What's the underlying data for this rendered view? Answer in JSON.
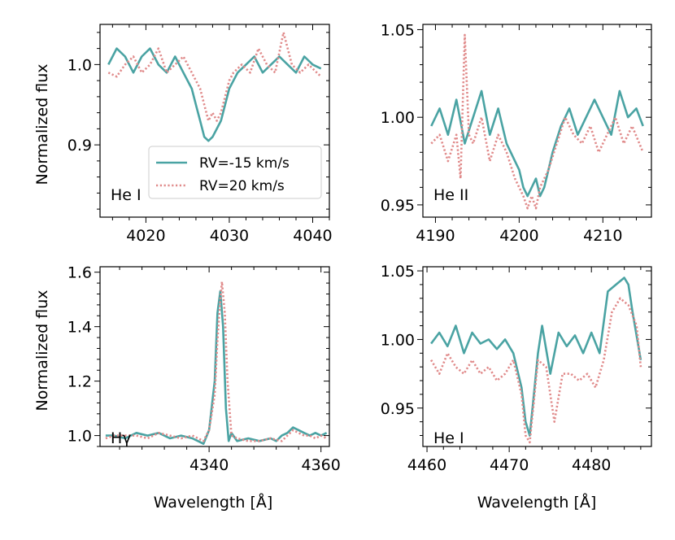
{
  "figure": {
    "y_axis_label": "Normalized flux",
    "x_axis_label": "Wavelength [Å]"
  },
  "legend": {
    "entries": [
      {
        "label": "RV=-15 km/s",
        "color": "#4aa3a3",
        "style": "solid"
      },
      {
        "label": "RV=20 km/s",
        "color": "#e08a8a",
        "style": "dotted"
      }
    ]
  },
  "chart_data": [
    {
      "type": "line",
      "panel_label": "He I",
      "xlim": [
        4014.5,
        4042
      ],
      "ylim": [
        0.81,
        1.05
      ],
      "x_ticks": [
        4020,
        4030,
        4040
      ],
      "y_ticks": [
        0.9,
        1.0
      ],
      "y_tick_labels": [
        "0.9",
        "1.0"
      ],
      "series": [
        {
          "name": "RV=-15 km/s",
          "x": [
            4015.5,
            4016.5,
            4017.5,
            4018.5,
            4019.5,
            4020.5,
            4021.5,
            4022.5,
            4023.5,
            4024.5,
            4025.5,
            4026.0,
            4026.5,
            4027.0,
            4027.5,
            4028.0,
            4028.5,
            4029.0,
            4029.5,
            4030.0,
            4031.0,
            4032.0,
            4033.0,
            4034.0,
            4035.0,
            4036.0,
            4037.0,
            4038.0,
            4039.0,
            4040.0,
            4041.0
          ],
          "y": [
            1.0,
            1.02,
            1.01,
            0.99,
            1.01,
            1.02,
            1.0,
            0.99,
            1.01,
            0.99,
            0.97,
            0.95,
            0.93,
            0.91,
            0.905,
            0.91,
            0.92,
            0.93,
            0.95,
            0.97,
            0.99,
            1.0,
            1.01,
            0.99,
            1.0,
            1.01,
            1.0,
            0.99,
            1.01,
            1.0,
            0.995
          ]
        },
        {
          "name": "RV=20 km/s",
          "x": [
            4015.5,
            4016.5,
            4017.5,
            4018.5,
            4019.5,
            4020.5,
            4021.5,
            4022.5,
            4023.5,
            4024.5,
            4025.5,
            4026.5,
            4027.0,
            4027.5,
            4028.0,
            4028.5,
            4029.0,
            4029.5,
            4030.0,
            4030.5,
            4031.5,
            4032.5,
            4033.5,
            4034.5,
            4035.5,
            4036.5,
            4037.5,
            4038.5,
            4039.5,
            4040.5,
            4041.0
          ],
          "y": [
            0.99,
            0.985,
            1.0,
            1.01,
            0.99,
            1.0,
            1.02,
            0.99,
            1.0,
            1.01,
            0.99,
            0.97,
            0.95,
            0.93,
            0.94,
            0.93,
            0.94,
            0.96,
            0.98,
            0.99,
            1.0,
            0.99,
            1.02,
            1.0,
            0.99,
            1.04,
            1.0,
            0.99,
            1.0,
            0.99,
            0.985
          ]
        }
      ]
    },
    {
      "type": "line",
      "panel_label": "He II",
      "xlim": [
        4188.5,
        4215.8
      ],
      "ylim": [
        0.943,
        1.053
      ],
      "x_ticks": [
        4190,
        4200,
        4210
      ],
      "y_ticks": [
        0.95,
        1.0,
        1.05
      ],
      "y_tick_labels": [
        "0.95",
        "1.00",
        "1.05"
      ],
      "series": [
        {
          "name": "RV=-15 km/s",
          "x": [
            4189.5,
            4190.5,
            4191.5,
            4192.5,
            4193.5,
            4194.5,
            4195.5,
            4196.5,
            4197.5,
            4198.5,
            4199.5,
            4200.0,
            4200.5,
            4201.0,
            4201.5,
            4202.0,
            4202.5,
            4203.0,
            4203.5,
            4204.0,
            4205.0,
            4206.0,
            4207.0,
            4208.0,
            4209.0,
            4210.0,
            4211.0,
            4212.0,
            4213.0,
            4214.0,
            4214.8
          ],
          "y": [
            0.995,
            1.005,
            0.99,
            1.01,
            0.985,
            1.0,
            1.015,
            0.99,
            1.005,
            0.985,
            0.975,
            0.97,
            0.96,
            0.955,
            0.96,
            0.965,
            0.955,
            0.96,
            0.97,
            0.98,
            0.995,
            1.005,
            0.99,
            1.0,
            1.01,
            1.0,
            0.99,
            1.015,
            1.0,
            1.005,
            0.995
          ]
        },
        {
          "name": "RV=20 km/s",
          "x": [
            4189.5,
            4190.5,
            4191.5,
            4192.5,
            4193.0,
            4193.5,
            4194.0,
            4194.5,
            4195.5,
            4196.5,
            4197.5,
            4198.5,
            4199.5,
            4200.5,
            4201.0,
            4201.5,
            4202.0,
            4202.5,
            4203.5,
            4204.5,
            4205.5,
            4206.5,
            4207.5,
            4208.5,
            4209.5,
            4210.5,
            4211.5,
            4212.5,
            4213.5,
            4214.8
          ],
          "y": [
            0.985,
            0.99,
            0.975,
            0.99,
            0.965,
            1.047,
            0.99,
            0.985,
            1.0,
            0.975,
            0.99,
            0.98,
            0.965,
            0.955,
            0.948,
            0.955,
            0.948,
            0.96,
            0.97,
            0.985,
            1.0,
            0.99,
            0.985,
            0.995,
            0.98,
            0.99,
            1.0,
            0.985,
            0.995,
            0.98
          ]
        }
      ]
    },
    {
      "type": "line",
      "panel_label": "Hγ",
      "xlim": [
        4320.5,
        4361.5
      ],
      "ylim": [
        0.96,
        1.62
      ],
      "x_ticks": [
        4340,
        4360
      ],
      "y_ticks": [
        1.0,
        1.2,
        1.4,
        1.6
      ],
      "y_tick_labels": [
        "1.0",
        "1.2",
        "1.4",
        "1.6"
      ],
      "series": [
        {
          "name": "RV=-15 km/s",
          "x": [
            4321.5,
            4323,
            4325,
            4327,
            4329,
            4331,
            4333,
            4335,
            4337,
            4338,
            4339,
            4340,
            4341,
            4341.5,
            4342,
            4342.5,
            4343,
            4343.5,
            4344,
            4345,
            4347,
            4349,
            4351,
            4352,
            4353,
            4354,
            4355,
            4356,
            4357,
            4358,
            4359,
            4360,
            4361
          ],
          "y": [
            1.0,
            1.0,
            0.99,
            1.01,
            1.0,
            1.01,
            0.99,
            1.0,
            0.99,
            0.98,
            0.97,
            1.02,
            1.2,
            1.45,
            1.53,
            1.4,
            1.1,
            0.98,
            1.01,
            0.98,
            0.99,
            0.98,
            0.99,
            0.98,
            1.0,
            1.01,
            1.03,
            1.02,
            1.01,
            1.0,
            1.01,
            1.0,
            1.01
          ]
        },
        {
          "name": "RV=20 km/s",
          "x": [
            4321.5,
            4323,
            4325,
            4327,
            4329,
            4331,
            4333,
            4335,
            4337,
            4339,
            4340,
            4341,
            4341.5,
            4342,
            4342.3,
            4342.8,
            4343.3,
            4344,
            4345,
            4347,
            4349,
            4351,
            4353,
            4355,
            4356,
            4357,
            4358,
            4359,
            4360,
            4361
          ],
          "y": [
            0.99,
            1.0,
            1.0,
            1.0,
            0.99,
            1.01,
            1.0,
            0.99,
            1.0,
            0.98,
            1.02,
            1.15,
            1.35,
            1.5,
            1.565,
            1.45,
            1.2,
            1.0,
            0.99,
            0.98,
            0.98,
            0.99,
            0.98,
            1.02,
            1.01,
            1.0,
            1.0,
            0.99,
            1.0,
            0.99
          ]
        }
      ]
    },
    {
      "type": "line",
      "panel_label": "He I",
      "xlim": [
        4459.5,
        4487.3
      ],
      "ylim": [
        0.922,
        1.053
      ],
      "x_ticks": [
        4460,
        4470,
        4480
      ],
      "y_ticks": [
        0.95,
        1.0,
        1.05
      ],
      "y_tick_labels": [
        "0.95",
        "1.00",
        "1.05"
      ],
      "series": [
        {
          "name": "RV=-15 km/s",
          "x": [
            4460.5,
            4461.5,
            4462.5,
            4463.5,
            4464.5,
            4465.5,
            4466.5,
            4467.5,
            4468.5,
            4469.5,
            4470.5,
            4471.5,
            4472.0,
            4472.5,
            4473.0,
            4473.5,
            4474.0,
            4475.0,
            4476.0,
            4477.0,
            4478.0,
            4479.0,
            4480.0,
            4481.0,
            4482.0,
            4483.0,
            4484.0,
            4484.5,
            4485.0,
            4486.0
          ],
          "y": [
            0.997,
            1.005,
            0.995,
            1.01,
            0.99,
            1.005,
            0.997,
            1.0,
            0.993,
            1.0,
            0.99,
            0.965,
            0.94,
            0.93,
            0.96,
            0.99,
            1.01,
            0.975,
            1.005,
            0.995,
            1.003,
            0.99,
            1.005,
            0.99,
            1.035,
            1.04,
            1.045,
            1.04,
            1.02,
            0.985
          ]
        },
        {
          "name": "RV=20 km/s",
          "x": [
            4460.5,
            4461.5,
            4462.5,
            4463.5,
            4464.5,
            4465.5,
            4466.5,
            4467.5,
            4468.5,
            4469.5,
            4470.5,
            4471.5,
            4472.0,
            4472.5,
            4473.0,
            4473.5,
            4474.5,
            4475.5,
            4476.5,
            4477.5,
            4478.5,
            4479.5,
            4480.5,
            4481.5,
            4482.5,
            4483.5,
            4484.5,
            4485.5,
            4486.0
          ],
          "y": [
            0.985,
            0.975,
            0.99,
            0.98,
            0.975,
            0.985,
            0.975,
            0.98,
            0.97,
            0.975,
            0.985,
            0.96,
            0.93,
            0.925,
            0.955,
            0.985,
            0.98,
            0.94,
            0.975,
            0.975,
            0.97,
            0.975,
            0.965,
            0.985,
            1.02,
            1.03,
            1.025,
            1.01,
            0.98
          ]
        }
      ]
    }
  ]
}
